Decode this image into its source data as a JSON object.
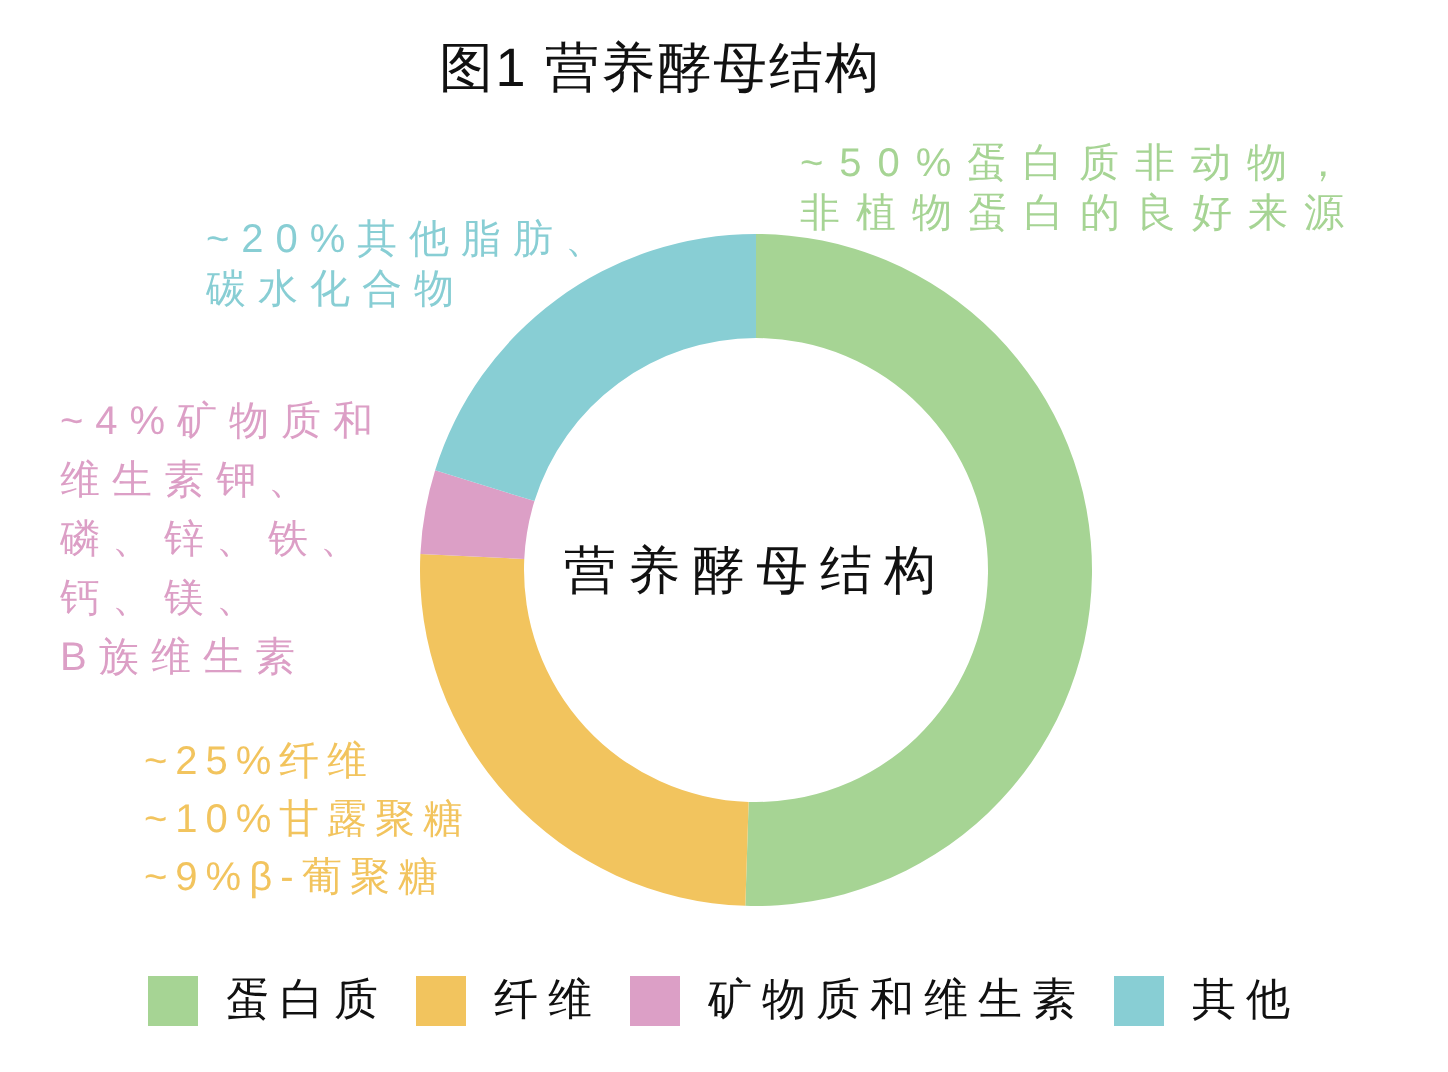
{
  "chart_data": {
    "type": "donut",
    "title": "图1 营养酵母结构",
    "categories": [
      "蛋白质",
      "纤维",
      "矿物质和维生素",
      "其他"
    ],
    "values": [
      50,
      25,
      4,
      20
    ],
    "colors": [
      "#a6d494",
      "#f2c45e",
      "#dc9fc6",
      "#88ced4"
    ],
    "value_labels": [
      "~50%蛋白质非动物，非植物蛋白的良好来源",
      "~25%纤维\n~10%甘露聚糖\n~9%β-葡聚糖",
      "~4%矿物质和维生素钾、磷、锌、铁、钙、镁、B族维生素",
      "~20%其他脂肪、碳水化合物"
    ],
    "annotations": [
      "营养酵母结构"
    ],
    "legend": "bottom"
  }
}
